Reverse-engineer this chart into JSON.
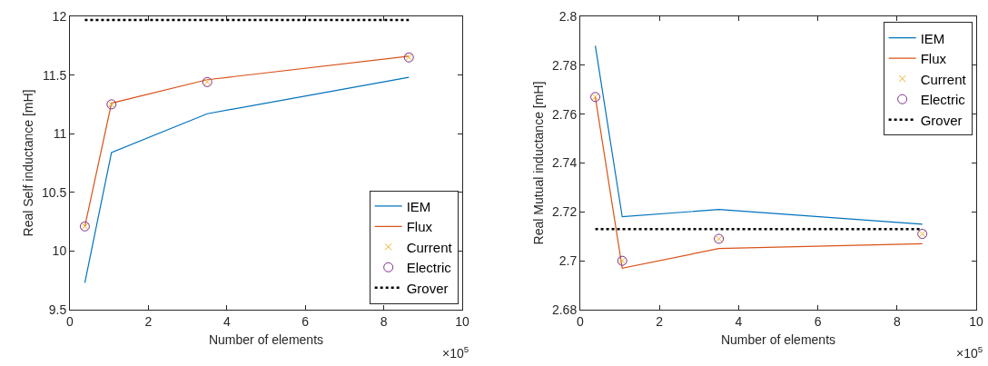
{
  "chart_data": [
    {
      "type": "line",
      "xlabel": "Number of elements",
      "ylabel": "Real Self inductance [mH]",
      "x": [
        0.38,
        1.06,
        3.5,
        8.64
      ],
      "xlim": [
        0,
        10
      ],
      "xticks": [
        0,
        2,
        4,
        6,
        8,
        10
      ],
      "ylim": [
        9.5,
        12
      ],
      "yticks": [
        9.5,
        10,
        10.5,
        11,
        11.5,
        12
      ],
      "grid": false,
      "legend": "bottom right",
      "annotations": [
        "×10$^{5}$"
      ],
      "series": [
        {
          "name": "IEM",
          "type": "line",
          "color": "#0072bd",
          "line_style": "solid",
          "values": [
            9.73,
            10.84,
            11.17,
            11.48
          ]
        },
        {
          "name": "Flux",
          "type": "line",
          "color": "#d95319",
          "line_style": "solid",
          "values": [
            10.21,
            11.26,
            11.46,
            11.66
          ]
        },
        {
          "name": "Current",
          "type": "scatter",
          "color": "#edb120",
          "marker": "cross",
          "values": [
            10.21,
            11.25,
            11.44,
            11.65
          ]
        },
        {
          "name": "Electric",
          "type": "scatter",
          "color": "#7e2f8e",
          "marker": "circle",
          "values": [
            10.21,
            11.25,
            11.44,
            11.65
          ]
        },
        {
          "name": "Grover",
          "type": "line",
          "color": "#000000",
          "line_style": "dotted",
          "values": [
            11.97,
            11.97,
            11.97,
            11.97
          ]
        }
      ]
    },
    {
      "type": "line",
      "xlabel": "Number of elements",
      "ylabel": "Real Mutual inductance [mH]",
      "x": [
        0.38,
        1.06,
        3.5,
        8.64
      ],
      "xlim": [
        0,
        10
      ],
      "xticks": [
        0,
        2,
        4,
        6,
        8,
        10
      ],
      "ylim": [
        2.68,
        2.8
      ],
      "yticks": [
        2.68,
        2.7,
        2.72,
        2.74,
        2.76,
        2.78,
        2.8
      ],
      "grid": false,
      "legend": "top right",
      "annotations": [
        "×10$^{5}$"
      ],
      "series": [
        {
          "name": "IEM",
          "type": "line",
          "color": "#0072bd",
          "line_style": "solid",
          "values": [
            2.788,
            2.718,
            2.721,
            2.715
          ]
        },
        {
          "name": "Flux",
          "type": "line",
          "color": "#d95319",
          "line_style": "solid",
          "values": [
            2.767,
            2.697,
            2.705,
            2.707
          ]
        },
        {
          "name": "Current",
          "type": "scatter",
          "color": "#edb120",
          "marker": "cross",
          "values": [
            2.767,
            2.7,
            2.709,
            2.711
          ]
        },
        {
          "name": "Electric",
          "type": "scatter",
          "color": "#7e2f8e",
          "marker": "circle",
          "values": [
            2.767,
            2.7,
            2.709,
            2.711
          ]
        },
        {
          "name": "Grover",
          "type": "line",
          "color": "#000000",
          "line_style": "dotted",
          "values": [
            2.713,
            2.713,
            2.713,
            2.713
          ]
        }
      ]
    }
  ]
}
